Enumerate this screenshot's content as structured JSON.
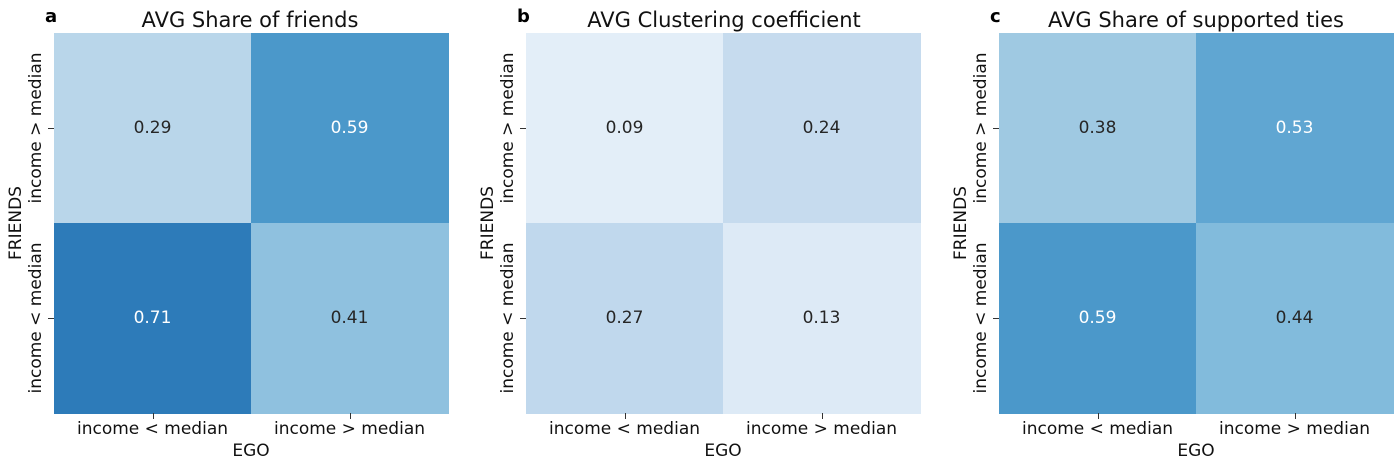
{
  "chart_data": [
    {
      "type": "heatmap",
      "panel_label": "a",
      "title": "AVG Share of friends",
      "xlabel": "EGO",
      "ylabel": "FRIENDS",
      "x_categories": [
        "income < median",
        "income > median"
      ],
      "y_categories": [
        "income > median",
        "income < median"
      ],
      "values": [
        [
          0.29,
          0.59
        ],
        [
          0.71,
          0.41
        ]
      ],
      "colors": [
        [
          "#b9d6ea",
          "#4b98ca"
        ],
        [
          "#2d7bb9",
          "#8fc1df"
        ]
      ],
      "text_colors": [
        [
          "#262626",
          "#ffffff"
        ],
        [
          "#ffffff",
          "#262626"
        ]
      ]
    },
    {
      "type": "heatmap",
      "panel_label": "b",
      "title": "AVG Clustering coefficient",
      "xlabel": "EGO",
      "ylabel": "FRIENDS",
      "x_categories": [
        "income < median",
        "income > median"
      ],
      "y_categories": [
        "income > median",
        "income < median"
      ],
      "values": [
        [
          0.09,
          0.24
        ],
        [
          0.27,
          0.13
        ]
      ],
      "colors": [
        [
          "#e3eef8",
          "#c6dbee"
        ],
        [
          "#c0d8ed",
          "#ddeaf6"
        ]
      ],
      "text_colors": [
        [
          "#262626",
          "#262626"
        ],
        [
          "#262626",
          "#262626"
        ]
      ]
    },
    {
      "type": "heatmap",
      "panel_label": "c",
      "title": "AVG Share of supported ties",
      "xlabel": "EGO",
      "ylabel": "FRIENDS",
      "x_categories": [
        "income < median",
        "income > median"
      ],
      "y_categories": [
        "income > median",
        "income < median"
      ],
      "values": [
        [
          0.38,
          0.53
        ],
        [
          0.59,
          0.44
        ]
      ],
      "colors": [
        [
          "#9fc9e2",
          "#60a6d2"
        ],
        [
          "#4b98ca",
          "#82bbdc"
        ]
      ],
      "text_colors": [
        [
          "#262626",
          "#ffffff"
        ],
        [
          "#ffffff",
          "#262626"
        ]
      ]
    }
  ]
}
